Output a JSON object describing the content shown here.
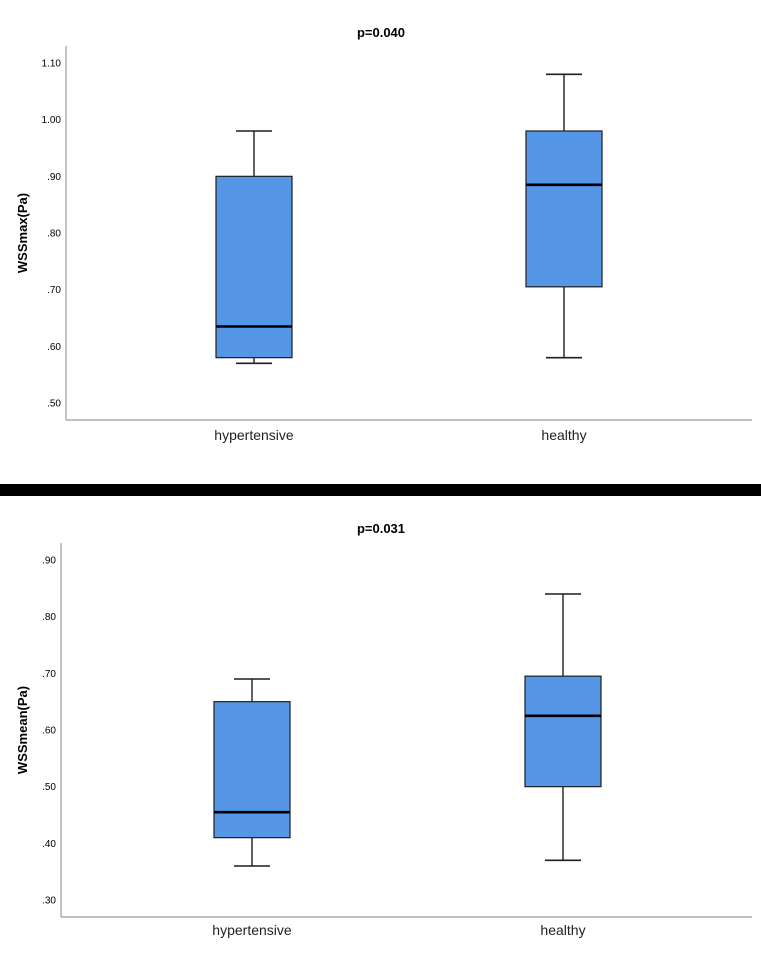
{
  "colors": {
    "box_fill": "#5596e6",
    "box_stroke": "#1f1f1f",
    "axis": "#9b9b9b",
    "divider": "#000000",
    "background": "#ffffff"
  },
  "chart_data": [
    {
      "type": "box",
      "title": "p=0.040",
      "xlabel": "",
      "ylabel": "WSSmax(Pa)",
      "ylim": [
        0.47,
        1.13
      ],
      "y_ticks": [
        0.5,
        0.6,
        0.7,
        0.8,
        0.9,
        1.0,
        1.1
      ],
      "y_tick_labels": [
        ".50",
        ".60",
        ".70",
        ".80",
        ".90",
        "1.00",
        "1.10"
      ],
      "categories": [
        "hypertensive",
        "healthy"
      ],
      "boxes": [
        {
          "category": "hypertensive",
          "min": 0.57,
          "q1": 0.58,
          "median": 0.635,
          "q3": 0.9,
          "max": 0.98
        },
        {
          "category": "healthy",
          "min": 0.58,
          "q1": 0.705,
          "median": 0.885,
          "q3": 0.98,
          "max": 1.08
        }
      ]
    },
    {
      "type": "box",
      "title": "p=0.031",
      "xlabel": "",
      "ylabel": "WSSmean(Pa)",
      "ylim": [
        0.27,
        0.93
      ],
      "y_ticks": [
        0.3,
        0.4,
        0.5,
        0.6,
        0.7,
        0.8,
        0.9
      ],
      "y_tick_labels": [
        ".30",
        ".40",
        ".50",
        ".60",
        ".70",
        ".80",
        ".90"
      ],
      "categories": [
        "hypertensive",
        "healthy"
      ],
      "boxes": [
        {
          "category": "hypertensive",
          "min": 0.36,
          "q1": 0.41,
          "median": 0.455,
          "q3": 0.65,
          "max": 0.69
        },
        {
          "category": "healthy",
          "min": 0.37,
          "q1": 0.5,
          "median": 0.625,
          "q3": 0.695,
          "max": 0.84
        }
      ]
    }
  ]
}
